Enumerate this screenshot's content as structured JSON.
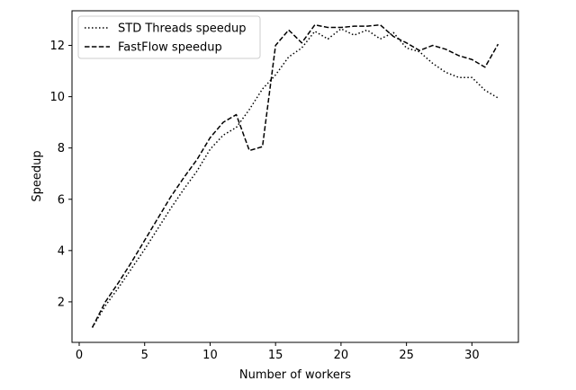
{
  "chart_data": {
    "type": "line",
    "title": "",
    "xlabel": "Number of workers",
    "ylabel": "Speedup",
    "xlim": [
      -0.55,
      33.55
    ],
    "ylim": [
      0.42,
      13.35
    ],
    "xticks": [
      0,
      5,
      10,
      15,
      20,
      25,
      30
    ],
    "yticks": [
      2,
      4,
      6,
      8,
      10,
      12
    ],
    "grid": false,
    "legend_position": "upper-left",
    "x": [
      1,
      2,
      3,
      4,
      5,
      6,
      7,
      8,
      9,
      10,
      11,
      12,
      13,
      14,
      15,
      16,
      17,
      18,
      19,
      20,
      21,
      22,
      23,
      24,
      25,
      26,
      27,
      28,
      29,
      30,
      31,
      32
    ],
    "series": [
      {
        "name": "STD Threads speedup",
        "line_style": "dotted",
        "color": "#000000",
        "values": [
          1.0,
          1.85,
          2.55,
          3.3,
          4.05,
          4.85,
          5.65,
          6.4,
          7.1,
          7.95,
          8.5,
          8.8,
          9.5,
          10.3,
          10.85,
          11.55,
          11.9,
          12.55,
          12.25,
          12.65,
          12.4,
          12.6,
          12.25,
          12.5,
          11.9,
          11.75,
          11.3,
          10.95,
          10.75,
          10.75,
          10.25,
          9.95
        ]
      },
      {
        "name": "FastFlow speedup",
        "line_style": "dashed",
        "color": "#000000",
        "values": [
          1.0,
          2.0,
          2.75,
          3.55,
          4.4,
          5.25,
          6.1,
          6.85,
          7.55,
          8.4,
          9.0,
          9.3,
          7.9,
          8.05,
          12.0,
          12.6,
          12.1,
          12.8,
          12.7,
          12.7,
          12.75,
          12.75,
          12.8,
          12.35,
          12.1,
          11.8,
          12.0,
          11.85,
          11.6,
          11.45,
          11.15,
          12.05
        ]
      }
    ]
  }
}
